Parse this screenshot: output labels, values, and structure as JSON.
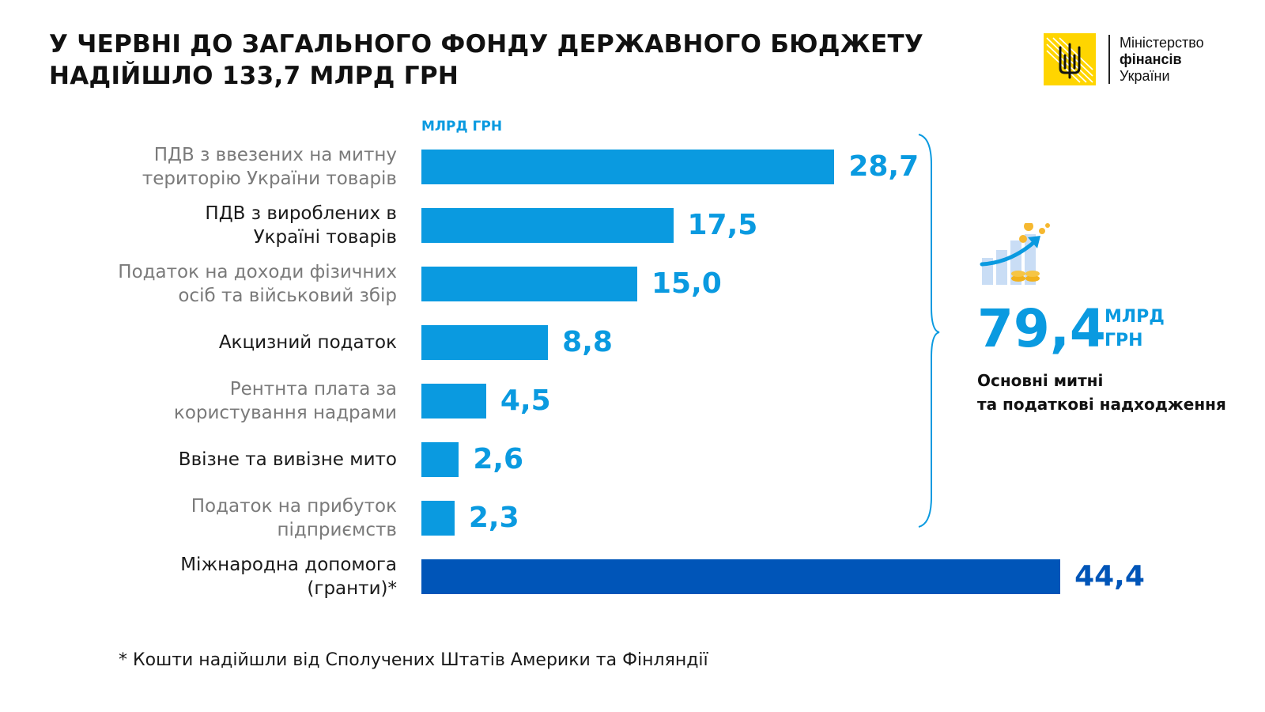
{
  "title_line1": "У ЧЕРВНІ ДО ЗАГАЛЬНОГО ФОНДУ ДЕРЖАВНОГО БЮДЖЕТУ",
  "title_line2": "НАДІЙШЛО 133,7 МЛРД ГРН",
  "logo": {
    "line1": "Міністерство",
    "line2": "фінансів",
    "line3": "України",
    "icon": "trident-emblem-icon",
    "color": "#ffd500"
  },
  "summary": {
    "value": "79,4",
    "unit_line1": "МЛРД",
    "unit_line2": "ГРН",
    "caption_line1": "Основні митні",
    "caption_line2": "та податкові надходження",
    "icon": "growth-coins-icon"
  },
  "footnote": "* Кошти надійшли від Сполучених Штатів Америки та Фінляндії",
  "colors": {
    "bar": "#0a9ae0",
    "bar_highlight": "#0055b8",
    "label_grey": "#7a7a7a",
    "label_dark": "#1a1a1a"
  },
  "chart_data": {
    "type": "bar",
    "orientation": "horizontal",
    "unit_label": "МЛРД ГРН",
    "categories": [
      [
        "ПДВ з ввезених на митну",
        "територію України товарів"
      ],
      [
        "ПДВ з вироблених в",
        "Україні товарів"
      ],
      [
        "Податок на доходи фізичних",
        "осіб та військовий збір"
      ],
      [
        "Акцизний податок"
      ],
      [
        "Рентнта плата за",
        "користування надрами"
      ],
      [
        "Ввізне та вивізне мито"
      ],
      [
        "Податок на прибуток",
        "підприємств"
      ],
      [
        "Міжнародна допомога",
        "(гранти)*"
      ]
    ],
    "values": [
      28.7,
      17.5,
      15.0,
      8.8,
      4.5,
      2.6,
      2.3,
      44.4
    ],
    "value_labels": [
      "28,7",
      "17,5",
      "15,0",
      "8,8",
      "4,5",
      "2,6",
      "2,3",
      "44,4"
    ],
    "label_style": [
      "grey",
      "dark",
      "grey",
      "dark",
      "grey",
      "dark",
      "grey",
      "dark"
    ],
    "highlight": [
      false,
      false,
      false,
      false,
      false,
      false,
      false,
      true
    ],
    "grid": false,
    "legend": "none"
  }
}
